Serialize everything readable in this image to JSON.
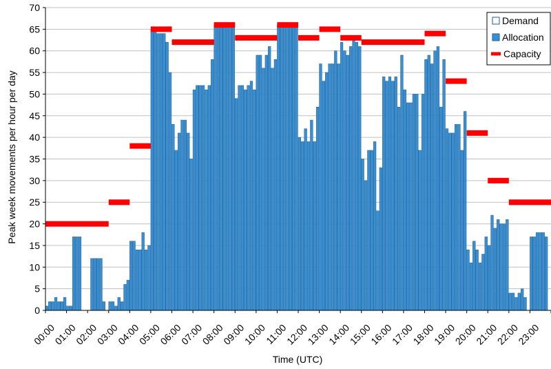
{
  "chart_data": {
    "type": "bar",
    "xlabel": "Time (UTC)",
    "ylabel": "Peak week movements per hour per day",
    "ylim": [
      0,
      70
    ],
    "yticks": [
      0,
      5,
      10,
      15,
      20,
      25,
      30,
      35,
      40,
      45,
      50,
      55,
      60,
      65,
      70
    ],
    "categories": [
      "00:00",
      "01:00",
      "02:00",
      "03:00",
      "04:00",
      "05:00",
      "06:00",
      "07:00",
      "08:00",
      "09:00",
      "10:00",
      "11:00",
      "12:00",
      "13:00",
      "14:00",
      "15:00",
      "16:00",
      "17:00",
      "18:00",
      "19:00",
      "20:00",
      "21:00",
      "22:00",
      "23:00"
    ],
    "grid": "horizontal",
    "legend_position": "top-right",
    "colors": {
      "allocation": "#3a8fd0",
      "allocation_edge": "#1f5f9a",
      "capacity": "#ff0000",
      "grid": "#c0c0c0"
    },
    "legend": [
      {
        "key": "demand",
        "label": "Demand"
      },
      {
        "key": "allocation",
        "label": "Allocation"
      },
      {
        "key": "capacity",
        "label": "Capacity"
      }
    ],
    "series": [
      {
        "name": "Allocation",
        "type": "bar",
        "values": [
          [
            1,
            2,
            2,
            3,
            2,
            2,
            3
          ],
          [
            1,
            1,
            17,
            17,
            17,
            0,
            0
          ],
          [
            0,
            12,
            12,
            12,
            12,
            2,
            0
          ],
          [
            2,
            2,
            1,
            3,
            2,
            6,
            7
          ],
          [
            16,
            16,
            14,
            14,
            18,
            14,
            15
          ],
          [
            65,
            65,
            64,
            64,
            64,
            62,
            55
          ],
          [
            43,
            37,
            41,
            44,
            44,
            41,
            35
          ],
          [
            51,
            52,
            52,
            52,
            51,
            52,
            58
          ],
          [
            66,
            66,
            66,
            66,
            66,
            66,
            66
          ],
          [
            49,
            52,
            52,
            51,
            52,
            53,
            51
          ],
          [
            59,
            59,
            56,
            59,
            61,
            56,
            58
          ],
          [
            66,
            66,
            66,
            66,
            66,
            66,
            66
          ],
          [
            40,
            39,
            42,
            39,
            44,
            39,
            47
          ],
          [
            57,
            53,
            55,
            57,
            57,
            60,
            57
          ],
          [
            62,
            60,
            59,
            61,
            63,
            62,
            61
          ],
          [
            35,
            30,
            37,
            37,
            39,
            23,
            33
          ],
          [
            54,
            53,
            54,
            53,
            54,
            47,
            59
          ],
          [
            51,
            48,
            48,
            50,
            50,
            37,
            50
          ],
          [
            58,
            59,
            57,
            60,
            61,
            47,
            58
          ],
          [
            42,
            41,
            41,
            43,
            43,
            37,
            46
          ],
          [
            14,
            11,
            16,
            14,
            11,
            13,
            17
          ],
          [
            15,
            22,
            19,
            21,
            20,
            20,
            21
          ],
          [
            4,
            4,
            3,
            4,
            5,
            3,
            0
          ],
          [
            17,
            17,
            18,
            18,
            18,
            17,
            0
          ]
        ]
      },
      {
        "name": "Capacity",
        "type": "line",
        "segments": [
          {
            "from": "00:00",
            "to": "03:00",
            "value": 20
          },
          {
            "from": "03:00",
            "to": "04:00",
            "value": 25
          },
          {
            "from": "04:00",
            "to": "05:00",
            "value": 38
          },
          {
            "from": "05:00",
            "to": "06:00",
            "value": 65
          },
          {
            "from": "06:00",
            "to": "08:00",
            "value": 62
          },
          {
            "from": "08:00",
            "to": "09:00",
            "value": 66
          },
          {
            "from": "09:00",
            "to": "11:00",
            "value": 63
          },
          {
            "from": "11:00",
            "to": "12:00",
            "value": 66
          },
          {
            "from": "12:00",
            "to": "13:00",
            "value": 63
          },
          {
            "from": "13:00",
            "to": "14:00",
            "value": 65
          },
          {
            "from": "14:00",
            "to": "15:00",
            "value": 63
          },
          {
            "from": "15:00",
            "to": "18:00",
            "value": 62
          },
          {
            "from": "18:00",
            "to": "19:00",
            "value": 64
          },
          {
            "from": "19:00",
            "to": "20:00",
            "value": 53
          },
          {
            "from": "20:00",
            "to": "21:00",
            "value": 41
          },
          {
            "from": "21:00",
            "to": "22:00",
            "value": 30
          },
          {
            "from": "22:00",
            "to": "24:00",
            "value": 25
          }
        ]
      }
    ]
  }
}
